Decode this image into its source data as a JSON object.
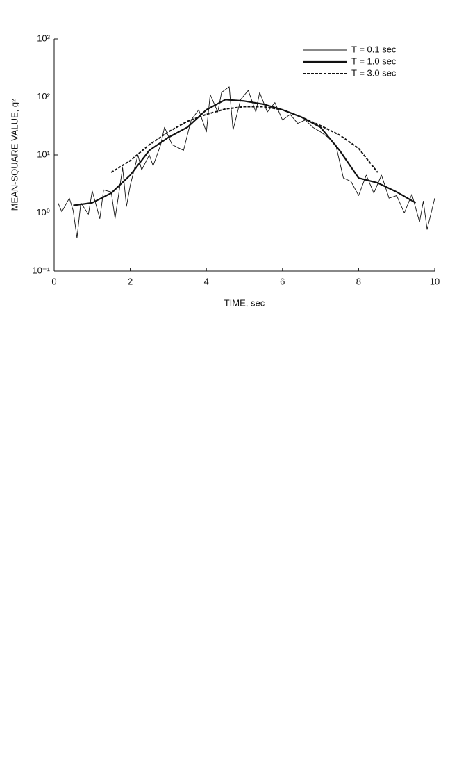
{
  "chart_data": {
    "type": "line",
    "xlabel": "TIME, sec",
    "ylabel": "MEAN-SQUARE VALUE, g²",
    "xlim": [
      0,
      10
    ],
    "xticks": [
      0,
      2,
      4,
      6,
      8,
      10
    ],
    "ylim": [
      0.1,
      1000
    ],
    "ylog": true,
    "yticks": [
      {
        "value": 0.1,
        "label": "10⁻¹"
      },
      {
        "value": 1,
        "label": "10⁰"
      },
      {
        "value": 10,
        "label": "10¹"
      },
      {
        "value": 100,
        "label": "10²"
      },
      {
        "value": 1000,
        "label": "10³"
      }
    ],
    "legend": "top-right",
    "series": [
      {
        "name": "T = 0.1 sec",
        "color": "#111111",
        "style": "solid",
        "x": [
          0.1,
          0.2,
          0.4,
          0.5,
          0.6,
          0.7,
          0.9,
          1.0,
          1.2,
          1.3,
          1.5,
          1.6,
          1.8,
          1.9,
          2.0,
          2.2,
          2.3,
          2.5,
          2.6,
          2.8,
          2.9,
          3.1,
          3.4,
          3.6,
          3.8,
          4.0,
          4.1,
          4.3,
          4.4,
          4.6,
          4.7,
          4.9,
          5.1,
          5.3,
          5.4,
          5.6,
          5.8,
          6.0,
          6.2,
          6.4,
          6.6,
          6.8,
          7.0,
          7.2,
          7.4,
          7.6,
          7.8,
          8.0,
          8.2,
          8.4,
          8.6,
          8.8,
          9.0,
          9.2,
          9.4,
          9.6,
          9.7,
          9.8,
          10.0
        ],
        "values": [
          1.5,
          1.05,
          1.8,
          1.1,
          0.37,
          1.5,
          0.95,
          2.4,
          0.8,
          2.5,
          2.3,
          0.8,
          6,
          1.3,
          3.0,
          10,
          5.5,
          10,
          6.5,
          15,
          30,
          15,
          12,
          40,
          60,
          25,
          110,
          55,
          120,
          150,
          27,
          90,
          130,
          55,
          120,
          55,
          80,
          40,
          50,
          35,
          40,
          30,
          25,
          20,
          15,
          4,
          3.5,
          2.0,
          4.5,
          2.2,
          4.5,
          1.8,
          2.0,
          1.0,
          2.1,
          0.7,
          1.6,
          0.52,
          1.8
        ]
      },
      {
        "name": "T = 1.0 sec",
        "color": "#111111",
        "style": "thick",
        "x": [
          0.5,
          1.0,
          1.5,
          2.0,
          2.5,
          3.0,
          3.5,
          4.0,
          4.5,
          5.0,
          5.5,
          6.0,
          6.5,
          7.0,
          7.5,
          8.0,
          8.5,
          9.0,
          9.5
        ],
        "values": [
          1.35,
          1.5,
          2.2,
          4.5,
          12,
          20,
          30,
          60,
          90,
          85,
          75,
          60,
          45,
          30,
          12,
          4,
          3.3,
          2.3,
          1.5
        ]
      },
      {
        "name": "T = 3.0 sec",
        "color": "#111111",
        "style": "dashed",
        "x": [
          1.5,
          2.0,
          2.5,
          3.0,
          3.5,
          4.0,
          4.5,
          5.0,
          5.5,
          6.0,
          6.5,
          7.0,
          7.5,
          8.0,
          8.5
        ],
        "values": [
          5,
          8,
          15,
          25,
          38,
          50,
          62,
          68,
          68,
          60,
          45,
          32,
          22,
          13,
          5
        ]
      }
    ]
  }
}
